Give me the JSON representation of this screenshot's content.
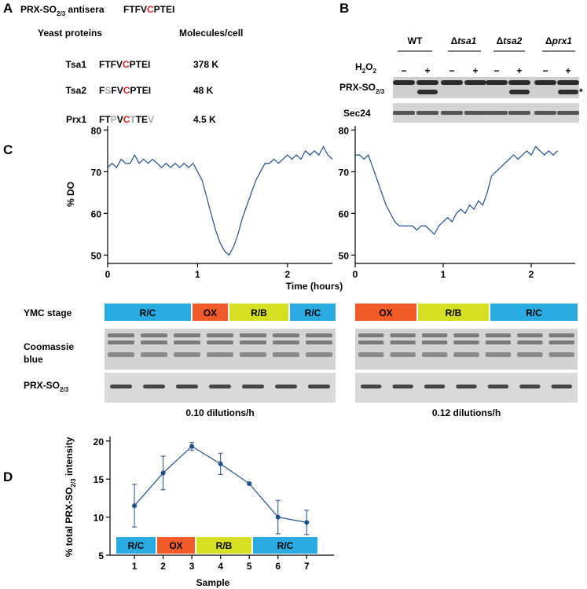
{
  "panel_labels": [
    "A",
    "B",
    "C",
    "D"
  ],
  "panel_a": {
    "antisera": {
      "name": "PRX-SO",
      "sub": "2/3",
      "suffix": " antisera",
      "sequence": [
        "FTFV",
        "C",
        "PTEI"
      ],
      "colors": [
        "#000000",
        "#e0262b",
        "#000000"
      ]
    },
    "header": {
      "proteins": "Yeast proteins",
      "molecules": "Molecules/cell"
    },
    "rows": [
      {
        "protein": "Tsa1",
        "sequence": [
          "FTFV",
          "C",
          "PTEI"
        ],
        "colors": [
          "#000000",
          "#e0262b",
          "#000000"
        ],
        "molecules": "378 K"
      },
      {
        "protein": "Tsa2",
        "sequence": [
          "F",
          "S",
          "FV",
          "C",
          "PTEI"
        ],
        "colors": [
          "#000000",
          "#a6a6a6",
          "#000000",
          "#e0262b",
          "#000000"
        ],
        "molecules": "48 K"
      },
      {
        "protein": "Prx1",
        "sequence": [
          "FT",
          "P",
          "V",
          "C",
          "T",
          "TE",
          "V"
        ],
        "colors": [
          "#000000",
          "#a6a6a6",
          "#000000",
          "#e0262b",
          "#a6a6a6",
          "#000000",
          "#a6a6a6"
        ],
        "molecules": "4.5 K"
      }
    ]
  },
  "panel_b": {
    "strains": [
      {
        "text": "WT"
      },
      {
        "prefix": "Δ",
        "gene": "tsa1"
      },
      {
        "prefix": "Δ",
        "gene": "tsa2"
      },
      {
        "prefix": "Δ",
        "gene": "prx1"
      }
    ],
    "treatment": {
      "h": "H",
      "sub1": "2",
      "o": "O",
      "sub2": "2"
    },
    "signs": [
      "−",
      "+",
      "−",
      "+",
      "−",
      "+",
      "−",
      "+"
    ],
    "rows": [
      {
        "name": "PRX-SO",
        "sub": "2/3"
      },
      {
        "name": "Sec24"
      }
    ],
    "asterisk": "*"
  },
  "panel_c": {
    "ymc_label": "YMC stage",
    "coomassie_label": [
      "Coomassie",
      "blue"
    ],
    "prx_label": {
      "name": "PRX-SO",
      "sub": "2/3"
    },
    "stage_colors": {
      "R/C": "#29abe2",
      "OX": "#f15a29",
      "R/B": "#d7df23"
    },
    "left": {
      "stages": [
        "R/C",
        "OX",
        "R/B",
        "R/C"
      ],
      "caption": "0.10 dilutions/h"
    },
    "right": {
      "stages": [
        "OX",
        "R/B",
        "R/C"
      ],
      "caption": "0.12 dilutions/h"
    }
  },
  "chart_data": [
    {
      "type": "line",
      "ylabel": "% DO",
      "xlabel": "Time (hours)",
      "color": "#1f4e8c",
      "x": [
        0,
        0.05,
        0.1,
        0.15,
        0.2,
        0.25,
        0.3,
        0.35,
        0.4,
        0.45,
        0.5,
        0.55,
        0.6,
        0.65,
        0.7,
        0.75,
        0.8,
        0.85,
        0.9,
        0.95,
        1.0,
        1.05,
        1.1,
        1.15,
        1.2,
        1.25,
        1.3,
        1.35,
        1.4,
        1.45,
        1.5,
        1.55,
        1.6,
        1.65,
        1.7,
        1.75,
        1.8,
        1.85,
        1.9,
        1.95,
        2.0,
        2.05,
        2.1,
        2.15,
        2.2,
        2.25,
        2.3,
        2.35,
        2.4,
        2.45,
        2.5
      ],
      "values": [
        71,
        72,
        71,
        73,
        72,
        72,
        74,
        72,
        73,
        72,
        73,
        72,
        71,
        72,
        71,
        72,
        71,
        72,
        71,
        72,
        70,
        68,
        64,
        60,
        56,
        53,
        51,
        50,
        52,
        55,
        59,
        62,
        65,
        68,
        70,
        72,
        72,
        73,
        72,
        73,
        74,
        73,
        74,
        73,
        75,
        74,
        75,
        74,
        76,
        74,
        73
      ],
      "xlim": [
        0,
        2.5
      ],
      "xticks": [
        0,
        1,
        2
      ],
      "ylim": [
        48,
        81
      ],
      "yticks": [
        50,
        60,
        70,
        80
      ]
    },
    {
      "type": "line",
      "color": "#1f4e8c",
      "x": [
        0,
        0.05,
        0.1,
        0.15,
        0.2,
        0.25,
        0.3,
        0.35,
        0.4,
        0.45,
        0.5,
        0.55,
        0.6,
        0.65,
        0.7,
        0.75,
        0.8,
        0.85,
        0.9,
        0.95,
        1.0,
        1.05,
        1.1,
        1.15,
        1.2,
        1.25,
        1.3,
        1.35,
        1.4,
        1.45,
        1.5,
        1.55,
        1.6,
        1.65,
        1.7,
        1.75,
        1.8,
        1.85,
        1.9,
        1.95,
        2.0,
        2.05,
        2.1,
        2.15,
        2.2,
        2.25,
        2.3
      ],
      "values": [
        74,
        74,
        73,
        74,
        71,
        68,
        65,
        62,
        60,
        58,
        57,
        57,
        57,
        57,
        56,
        57,
        57,
        56,
        55,
        57,
        58,
        59,
        58,
        60,
        61,
        60,
        62,
        61,
        63,
        62,
        65,
        69,
        70,
        71,
        72,
        73,
        74,
        73,
        74,
        75,
        74,
        76,
        75,
        74,
        75,
        74,
        75
      ],
      "xlim": [
        0,
        2.5
      ],
      "xticks": [
        0,
        1,
        2
      ],
      "ylim": [
        48,
        81
      ],
      "yticks": [
        50,
        60,
        70,
        80
      ]
    },
    {
      "type": "errorline",
      "ylabel": {
        "a": "% total PRX-SO",
        "sub": "2/3",
        "b": " intensity"
      },
      "xlabel": "Sample",
      "color": "#1f4e8c",
      "x": [
        1,
        2,
        3,
        4,
        5,
        6,
        7
      ],
      "values": [
        11.5,
        15.8,
        19.3,
        17.0,
        14.4,
        10.0,
        9.3
      ],
      "errors": [
        2.8,
        2.2,
        0.5,
        1.4,
        0.1,
        2.2,
        1.6
      ],
      "stages": [
        "R/C",
        "OX",
        "R/B",
        "R/C"
      ],
      "xlim": [
        0.15,
        7.95
      ],
      "xticks": [
        1,
        2,
        3,
        4,
        5,
        6,
        7
      ],
      "ylim": [
        5,
        20.6
      ],
      "yticks": [
        5,
        10,
        15,
        20
      ]
    }
  ]
}
